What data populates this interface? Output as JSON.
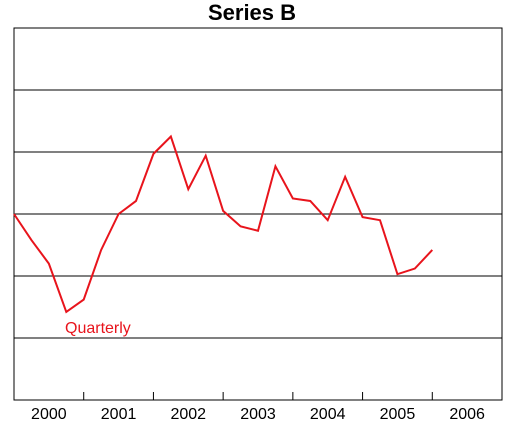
{
  "chart_data": {
    "type": "line",
    "title": "Series B",
    "xlabel": "",
    "ylabel": "",
    "grid": true,
    "xlim": [
      2000.0,
      2007.0
    ],
    "x_ticks": [
      2000,
      2001,
      2002,
      2003,
      2004,
      2005,
      2006
    ],
    "ylim": [
      0,
      6
    ],
    "y_gridlines": [
      1,
      2,
      3,
      4,
      5
    ],
    "series": [
      {
        "name": "Quarterly",
        "color": "#e8141c",
        "x": [
          2000.0,
          2000.25,
          2000.5,
          2000.75,
          2001.0,
          2001.25,
          2001.5,
          2001.75,
          2002.0,
          2002.25,
          2002.5,
          2002.75,
          2003.0,
          2003.25,
          2003.5,
          2003.75,
          2004.0,
          2004.25,
          2004.5,
          2004.75,
          2005.0,
          2005.25,
          2005.5,
          2005.75,
          2006.0,
          2006.25
        ],
        "values": [
          3.0,
          2.58,
          2.2,
          1.42,
          1.62,
          2.42,
          3.0,
          3.21,
          3.97,
          4.25,
          3.4,
          3.94,
          3.05,
          2.8,
          2.73,
          3.77,
          3.25,
          3.21,
          2.9,
          3.6,
          2.95,
          2.9,
          2.03,
          2.12,
          2.42,
          null
        ],
        "label_position": "bottom-left"
      }
    ]
  }
}
